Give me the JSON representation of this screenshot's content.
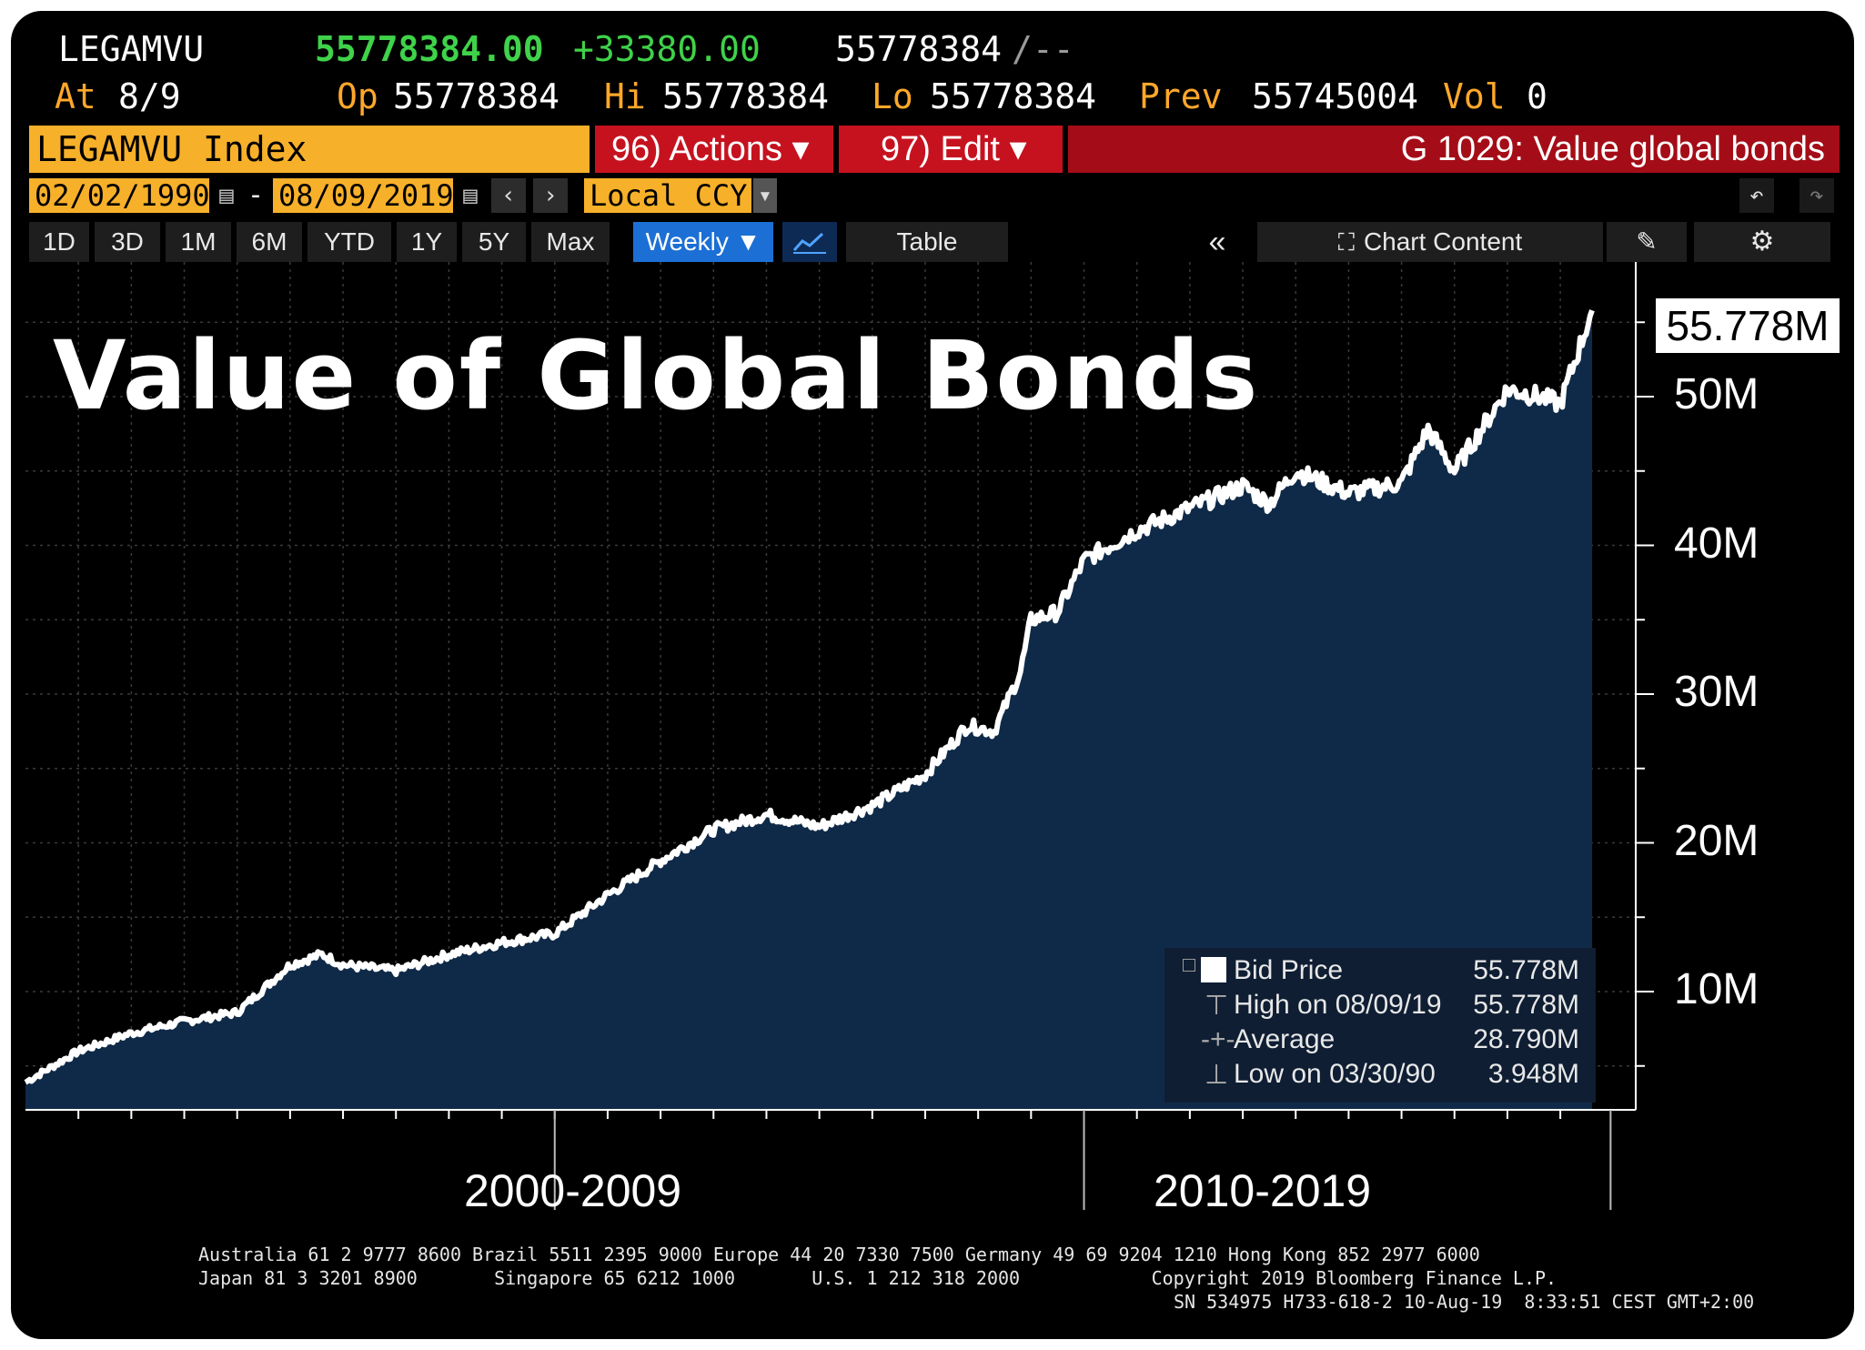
{
  "header": {
    "ticker": "LEGAMVU",
    "last_value": "55778384.00",
    "change": "+33380.00",
    "bid": "55778384",
    "ask": "/--",
    "at_label": "At",
    "at_date": "8/9",
    "op_label": "Op",
    "op_value": "55778384",
    "hi_label": "Hi",
    "hi_value": "55778384",
    "lo_label": "Lo",
    "lo_value": "55778384",
    "prev_label": "Prev",
    "prev_value": "55745004",
    "vol_label": "Vol",
    "vol_value": "0"
  },
  "toolbar": {
    "index_label": "LEGAMVU Index",
    "actions_label": "96) Actions ▾",
    "edit_label": "97) Edit ▾",
    "title": "G 1029: Value global bonds",
    "start_date": "02/02/1990",
    "end_date": "08/09/2019",
    "date_sep": "-",
    "currency": "Local CCY",
    "tabs": [
      "1D",
      "3D",
      "1M",
      "6M",
      "YTD",
      "1Y",
      "5Y",
      "Max"
    ],
    "frequency": "Weekly ▼",
    "table_label": "Table",
    "chart_content_label": "Chart Content"
  },
  "chart_title": "Value of Global Bonds",
  "last_price_tag": "55.778M",
  "legend": {
    "items": [
      {
        "label": "Bid Price",
        "value": "55.778M"
      },
      {
        "label": "High on 08/09/19",
        "value": "55.778M"
      },
      {
        "label": "Average",
        "value": "28.790M"
      },
      {
        "label": "Low on 03/30/90",
        "value": "3.948M"
      }
    ]
  },
  "chart_data": {
    "type": "area",
    "title": "Value of Global Bonds",
    "x_range": [
      "1990",
      "2019-08-09"
    ],
    "y_range": [
      0,
      56
    ],
    "y_unit": "M",
    "y_ticks": [
      "10M",
      "20M",
      "30M",
      "40M",
      "50M"
    ],
    "x_group_labels": [
      "2000-2009",
      "2010-2019"
    ],
    "grid": true,
    "series": [
      {
        "name": "Bid Price",
        "color": "#ffffff",
        "fill": "#0f2a48",
        "x": [
          1990.0,
          1991.0,
          1992.0,
          1993.0,
          1994.0,
          1995.0,
          1995.6,
          1996.0,
          1997.0,
          1998.0,
          1999.0,
          2000.0,
          2001.0,
          2002.0,
          2003.0,
          2004.0,
          2005.0,
          2006.0,
          2007.0,
          2007.8,
          2008.3,
          2008.8,
          2009.0,
          2009.5,
          2010.0,
          2011.0,
          2012.0,
          2013.0,
          2013.5,
          2014.0,
          2015.0,
          2016.0,
          2016.5,
          2017.0,
          2018.0,
          2018.6,
          2019.0,
          2019.6
        ],
        "values": [
          3.9,
          6.0,
          7.2,
          8.0,
          8.6,
          11.8,
          12.5,
          11.8,
          11.4,
          12.5,
          13.3,
          13.9,
          16.5,
          18.8,
          20.9,
          21.9,
          21.1,
          22.5,
          24.6,
          27.9,
          27.5,
          31.5,
          35.0,
          35.5,
          39.0,
          41.0,
          42.5,
          44.0,
          42.8,
          45.0,
          43.5,
          44.2,
          47.8,
          45.0,
          50.5,
          50.0,
          49.5,
          55.8
        ]
      }
    ]
  },
  "footer": {
    "line1": "Australia 61 2 9777 8600 Brazil 5511 2395 9000 Europe 44 20 7330 7500 Germany 49 69 9204 1210 Hong Kong 852 2977 6000",
    "line2": "Japan 81 3 3201 8900       Singapore 65 6212 1000       U.S. 1 212 318 2000            Copyright 2019 Bloomberg Finance L.P.",
    "line3": "SN 534975 H733-618-2 10-Aug-19  8:33:51 CEST GMT+2:00"
  }
}
